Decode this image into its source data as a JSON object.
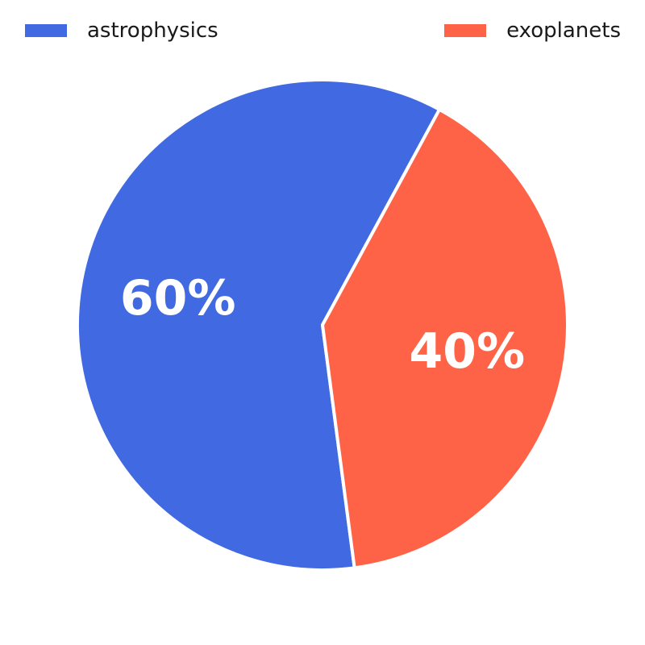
{
  "chart_data": {
    "type": "pie",
    "slices": [
      {
        "label": "astrophysics",
        "value": 60,
        "display": "60%",
        "color": "#4169E1"
      },
      {
        "label": "exoplanets",
        "value": 40,
        "display": "40%",
        "color": "#FF6347"
      }
    ],
    "legend_position": "top",
    "title": ""
  }
}
